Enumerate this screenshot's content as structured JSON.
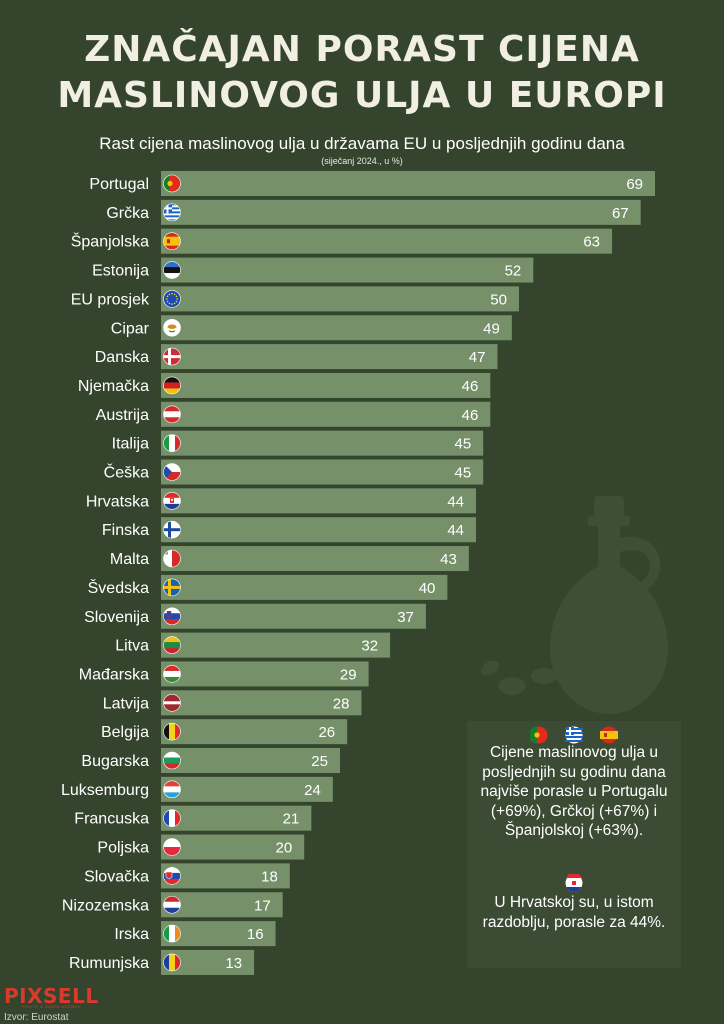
{
  "title_line1": "ZNAČAJAN PORAST CIJENA",
  "title_line2": "MASLINOVOG ULJA U EUROPI",
  "subtitle": "Rast cijena maslinovog ulja u državama EU u posljednjih godinu dana",
  "subnote": "(siječanj 2024., u %)",
  "colors": {
    "background": "#35452d",
    "bar": "#76906a",
    "callout_bg": "#3c4b34"
  },
  "chart_data": {
    "type": "bar",
    "orientation": "horizontal",
    "title": "Rast cijena maslinovog ulja u državama EU u posljednjih godinu dana",
    "unit": "%",
    "xlim": [
      0,
      69
    ],
    "categories": [
      "Portugal",
      "Grčka",
      "Španjolska",
      "Estonija",
      "EU prosjek",
      "Cipar",
      "Danska",
      "Njemačka",
      "Austrija",
      "Italija",
      "Češka",
      "Hrvatska",
      "Finska",
      "Malta",
      "Švedska",
      "Slovenija",
      "Litva",
      "Mađarska",
      "Latvija",
      "Belgija",
      "Bugarska",
      "Luksemburg",
      "Francuska",
      "Poljska",
      "Slovačka",
      "Nizozemska",
      "Irska",
      "Rumunjska"
    ],
    "values": [
      69,
      67,
      63,
      52,
      50,
      49,
      47,
      46,
      46,
      45,
      45,
      44,
      44,
      43,
      40,
      37,
      32,
      29,
      28,
      26,
      25,
      24,
      21,
      20,
      18,
      17,
      16,
      13
    ],
    "flags": [
      "portugal-flag",
      "greece-flag",
      "spain-flag",
      "estonia-flag",
      "eu-flag",
      "cyprus-flag",
      "denmark-flag",
      "germany-flag",
      "austria-flag",
      "italy-flag",
      "czechia-flag",
      "croatia-flag",
      "finland-flag",
      "malta-flag",
      "sweden-flag",
      "slovenia-flag",
      "lithuania-flag",
      "hungary-flag",
      "latvia-flag",
      "belgium-flag",
      "bulgaria-flag",
      "luxembourg-flag",
      "france-flag",
      "poland-flag",
      "slovakia-flag",
      "netherlands-flag",
      "ireland-flag",
      "romania-flag"
    ]
  },
  "callout": {
    "text1": "Cijene maslinovog ulja u posljednjih su godinu dana najviše porasle u Portugalu (+69%), Grčkoj (+67%) i Španjolskoj (+63%).",
    "text2": "U Hrvatskoj su, u istom razdoblju, porasle za 44%.",
    "top_flags": [
      "portugal-flag",
      "greece-flag",
      "spain-flag"
    ],
    "bottom_flag": "croatia-flag"
  },
  "logo": {
    "name": "PIXSELL",
    "tagline": "PHOTO & VIDEO AGENCY"
  },
  "source": "Izvor: Eurostat",
  "decoration": "olive-oil-bottle-icon"
}
